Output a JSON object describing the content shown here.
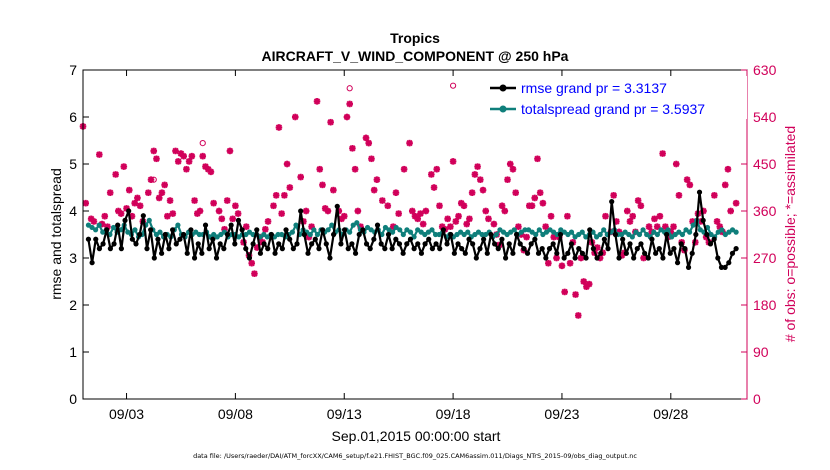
{
  "chart_data": {
    "type": "line",
    "title": "Tropics",
    "subtitle": "AIRCRAFT_V_WIND_COMPONENT @ 250 hPa",
    "xlabel": "Sep.01,2015 00:00:00 start",
    "ylabel": "rmse and totalspread",
    "y2label": "# of obs: o=possible; *=assimilated",
    "xlim": [
      0,
      30.5
    ],
    "ylim": [
      0,
      7
    ],
    "y2lim": [
      0,
      630
    ],
    "x_ticks": [
      {
        "label": "09/03",
        "day": 2
      },
      {
        "label": "09/08",
        "day": 7
      },
      {
        "label": "09/13",
        "day": 12
      },
      {
        "label": "09/18",
        "day": 17
      },
      {
        "label": "09/23",
        "day": 22
      },
      {
        "label": "09/28",
        "day": 27
      }
    ],
    "y_ticks": [
      "0",
      "1",
      "2",
      "3",
      "4",
      "5",
      "6",
      "7"
    ],
    "y2_ticks": [
      "0",
      "90",
      "180",
      "270",
      "360",
      "450",
      "540",
      "630"
    ],
    "legend_position": "top-right",
    "colors": {
      "rmse": "#000000",
      "spread": "#0f7f7b",
      "obs": "#d1005a",
      "legend_text": "#0000ff"
    },
    "series": [
      {
        "name": "rmse grand pr = 3.3137",
        "axis": "left",
        "values": [
          3.4,
          2.9,
          3.4,
          3.2,
          3.3,
          3.6,
          3.2,
          3.3,
          3.7,
          3.2,
          3.8,
          4.0,
          3.4,
          3.3,
          3.5,
          3.9,
          3.2,
          3.6,
          3.0,
          3.4,
          3.1,
          3.5,
          3.2,
          3.6,
          3.3,
          3.4,
          3.5,
          3.1,
          3.6,
          3.0,
          3.3,
          3.1,
          3.7,
          3.2,
          3.4,
          3.0,
          3.3,
          3.2,
          3.5,
          3.7,
          3.3,
          3.8,
          3.6,
          3.2,
          3.0,
          3.3,
          3.6,
          3.1,
          3.3,
          3.2,
          3.5,
          3.1,
          3.3,
          3.2,
          3.6,
          3.4,
          3.2,
          3.3,
          4.0,
          3.5,
          3.1,
          3.3,
          3.4,
          3.2,
          3.6,
          3.3,
          3.0,
          3.5,
          4.1,
          3.3,
          3.6,
          3.2,
          3.3,
          3.1,
          3.5,
          3.6,
          3.3,
          3.2,
          3.4,
          3.7,
          3.3,
          3.2,
          3.5,
          3.2,
          3.4,
          3.3,
          3.1,
          3.3,
          3.4,
          3.2,
          3.3,
          3.1,
          3.3,
          3.4,
          3.2,
          3.3,
          3.2,
          3.6,
          3.3,
          3.5,
          3.1,
          3.3,
          3.2,
          3.1,
          3.4,
          3.3,
          3.0,
          3.2,
          3.4,
          3.1,
          3.5,
          3.3,
          3.2,
          3.4,
          3.0,
          3.3,
          3.1,
          3.5,
          3.3,
          3.2,
          3.1,
          3.3,
          3.4,
          3.1,
          3.2,
          3.0,
          3.2,
          3.3,
          3.1,
          3.5,
          3.0,
          3.1,
          3.3,
          3.0,
          3.2,
          3.1,
          3.0,
          3.6,
          3.2,
          3.0,
          3.1,
          3.4,
          3.2,
          4.2,
          3.5,
          3.0,
          3.4,
          3.1,
          3.3,
          3.0,
          3.2,
          3.3,
          3.1,
          3.0,
          3.4,
          3.1,
          3.2,
          3.0,
          3.5,
          3.1,
          3.2,
          2.9,
          3.3,
          3.2,
          2.8,
          3.1,
          3.5,
          4.4,
          3.8,
          3.5,
          3.3,
          3.4,
          3.0,
          2.8,
          2.8,
          2.9,
          3.1,
          3.2
        ]
      },
      {
        "name": "totalspread grand pr = 3.5937",
        "axis": "left",
        "values": [
          3.7,
          3.65,
          3.6,
          3.7,
          3.55,
          3.6,
          3.5,
          3.65,
          3.55,
          3.6,
          3.7,
          3.55,
          3.5,
          3.6,
          3.45,
          3.5,
          3.7,
          3.8,
          3.6,
          3.5,
          3.55,
          3.45,
          3.5,
          3.45,
          3.6,
          3.7,
          3.5,
          3.45,
          3.55,
          3.5,
          3.55,
          3.5,
          3.5,
          3.55,
          3.45,
          3.5,
          3.45,
          3.5,
          3.55,
          3.45,
          3.5,
          3.5,
          3.45,
          3.5,
          3.5,
          3.55,
          3.5,
          3.5,
          3.45,
          3.5,
          3.45,
          3.5,
          3.45,
          3.5,
          3.5,
          3.45,
          3.5,
          3.55,
          3.7,
          3.5,
          3.6,
          3.55,
          3.5,
          3.6,
          3.5,
          3.6,
          3.55,
          3.6,
          3.7,
          3.55,
          3.6,
          3.5,
          3.6,
          3.55,
          3.7,
          3.75,
          3.6,
          3.55,
          3.65,
          3.6,
          3.55,
          3.6,
          3.5,
          3.65,
          3.6,
          3.55,
          3.65,
          3.6,
          3.5,
          3.6,
          3.55,
          3.45,
          3.6,
          3.55,
          3.5,
          3.55,
          3.6,
          3.5,
          3.5,
          3.55,
          3.45,
          3.5,
          3.45,
          3.5,
          3.55,
          3.5,
          3.55,
          3.45,
          3.5,
          3.55,
          3.5,
          3.5,
          3.55,
          3.45,
          3.5,
          3.6,
          3.55,
          3.5,
          3.55,
          3.6,
          3.5,
          3.55,
          3.6,
          3.6,
          3.55,
          3.5,
          3.6,
          3.5,
          3.55,
          3.6,
          3.55,
          3.5,
          3.6,
          3.55,
          3.5,
          3.55,
          3.45,
          3.5,
          3.55,
          3.45,
          3.5,
          3.55,
          3.45,
          3.5,
          3.6,
          3.5,
          3.55,
          3.6,
          3.5,
          3.5,
          3.55,
          3.5,
          3.45,
          3.55,
          3.5,
          3.6,
          3.5,
          3.45,
          3.55,
          3.5,
          3.6,
          3.55,
          3.6,
          3.45,
          3.5,
          3.55,
          3.5,
          3.6,
          3.55,
          3.7,
          3.8,
          3.6,
          3.55,
          3.65,
          3.5,
          3.45,
          3.55,
          3.6,
          3.5,
          3.55,
          3.6,
          3.55
        ]
      }
    ],
    "obs_assimilated": {
      "axis": "right",
      "points": [
        [
          0.0,
          522
        ],
        [
          0.125,
          375
        ],
        [
          0.375,
          345
        ],
        [
          0.5,
          340
        ],
        [
          0.75,
          468
        ],
        [
          0.875,
          335
        ],
        [
          1.0,
          350
        ],
        [
          1.125,
          330
        ],
        [
          1.25,
          395
        ],
        [
          1.5,
          430
        ],
        [
          1.625,
          360
        ],
        [
          1.75,
          355
        ],
        [
          1.875,
          445
        ],
        [
          2.0,
          365
        ],
        [
          2.125,
          400
        ],
        [
          2.25,
          350
        ],
        [
          2.375,
          375
        ],
        [
          2.5,
          385
        ],
        [
          2.625,
          370
        ],
        [
          2.75,
          340
        ],
        [
          3.0,
          395
        ],
        [
          3.125,
          420
        ],
        [
          3.25,
          475
        ],
        [
          3.375,
          460
        ],
        [
          3.5,
          385
        ],
        [
          3.625,
          395
        ],
        [
          3.75,
          410
        ],
        [
          3.875,
          350
        ],
        [
          4.0,
          380
        ],
        [
          4.125,
          355
        ],
        [
          4.25,
          475
        ],
        [
          4.375,
          455
        ],
        [
          4.5,
          470
        ],
        [
          4.625,
          465
        ],
        [
          4.75,
          440
        ],
        [
          4.875,
          455
        ],
        [
          5.0,
          465
        ],
        [
          5.125,
          380
        ],
        [
          5.25,
          355
        ],
        [
          5.375,
          360
        ],
        [
          5.5,
          465
        ],
        [
          5.625,
          445
        ],
        [
          5.75,
          440
        ],
        [
          5.875,
          435
        ],
        [
          6.0,
          375
        ],
        [
          6.25,
          360
        ],
        [
          6.375,
          345
        ],
        [
          6.5,
          325
        ],
        [
          6.625,
          380
        ],
        [
          6.75,
          475
        ],
        [
          6.875,
          345
        ],
        [
          7.0,
          370
        ],
        [
          7.125,
          355
        ],
        [
          7.375,
          300
        ],
        [
          7.5,
          330
        ],
        [
          7.625,
          275
        ],
        [
          7.75,
          260
        ],
        [
          7.875,
          240
        ],
        [
          8.0,
          290
        ],
        [
          8.125,
          310
        ],
        [
          8.25,
          300
        ],
        [
          8.375,
          325
        ],
        [
          8.5,
          340
        ],
        [
          8.75,
          370
        ],
        [
          8.875,
          390
        ],
        [
          9.0,
          520
        ],
        [
          9.125,
          355
        ],
        [
          9.25,
          390
        ],
        [
          9.375,
          450
        ],
        [
          9.5,
          405
        ],
        [
          9.75,
          540
        ],
        [
          10.0,
          425
        ],
        [
          10.125,
          340
        ],
        [
          10.25,
          360
        ],
        [
          10.375,
          310
        ],
        [
          10.5,
          330
        ],
        [
          10.75,
          570
        ],
        [
          10.875,
          440
        ],
        [
          11.0,
          410
        ],
        [
          11.125,
          365
        ],
        [
          11.25,
          360
        ],
        [
          11.375,
          530
        ],
        [
          11.5,
          400
        ],
        [
          11.75,
          360
        ],
        [
          11.875,
          345
        ],
        [
          12.0,
          350
        ],
        [
          12.125,
          540
        ],
        [
          12.25,
          565
        ],
        [
          12.375,
          480
        ],
        [
          12.5,
          440
        ],
        [
          12.625,
          360
        ],
        [
          12.75,
          330
        ],
        [
          13.0,
          500
        ],
        [
          13.125,
          490
        ],
        [
          13.25,
          460
        ],
        [
          13.375,
          400
        ],
        [
          13.5,
          420
        ],
        [
          13.75,
          380
        ],
        [
          14.0,
          370
        ],
        [
          14.25,
          330
        ],
        [
          14.375,
          395
        ],
        [
          14.5,
          355
        ],
        [
          14.75,
          440
        ],
        [
          15.0,
          490
        ],
        [
          15.125,
          360
        ],
        [
          15.25,
          350
        ],
        [
          15.375,
          345
        ],
        [
          15.5,
          355
        ],
        [
          15.625,
          335
        ],
        [
          15.75,
          360
        ],
        [
          16.0,
          430
        ],
        [
          16.125,
          405
        ],
        [
          16.25,
          440
        ],
        [
          16.375,
          370
        ],
        [
          16.5,
          330
        ],
        [
          16.625,
          325
        ],
        [
          16.75,
          345
        ],
        [
          16.875,
          330
        ],
        [
          17.0,
          455
        ],
        [
          17.125,
          340
        ],
        [
          17.25,
          350
        ],
        [
          17.375,
          375
        ],
        [
          17.5,
          370
        ],
        [
          17.625,
          335
        ],
        [
          17.75,
          345
        ],
        [
          17.875,
          395
        ],
        [
          18.0,
          430
        ],
        [
          18.125,
          445
        ],
        [
          18.25,
          420
        ],
        [
          18.375,
          400
        ],
        [
          18.5,
          360
        ],
        [
          18.625,
          345
        ],
        [
          18.875,
          335
        ],
        [
          19.0,
          315
        ],
        [
          19.125,
          295
        ],
        [
          19.25,
          370
        ],
        [
          19.375,
          360
        ],
        [
          19.5,
          420
        ],
        [
          19.625,
          450
        ],
        [
          19.75,
          440
        ],
        [
          19.875,
          395
        ],
        [
          20.0,
          330
        ],
        [
          20.125,
          315
        ],
        [
          20.25,
          285
        ],
        [
          20.375,
          310
        ],
        [
          20.5,
          370
        ],
        [
          20.625,
          370
        ],
        [
          20.75,
          385
        ],
        [
          20.875,
          460
        ],
        [
          21.0,
          395
        ],
        [
          21.125,
          375
        ],
        [
          21.25,
          330
        ],
        [
          21.375,
          260
        ],
        [
          21.5,
          350
        ],
        [
          21.625,
          310
        ],
        [
          21.75,
          270
        ],
        [
          21.875,
          310
        ],
        [
          22.0,
          255
        ],
        [
          22.125,
          205
        ],
        [
          22.25,
          350
        ],
        [
          22.375,
          260
        ],
        [
          22.5,
          300
        ],
        [
          22.625,
          200
        ],
        [
          22.75,
          160
        ],
        [
          22.875,
          270
        ],
        [
          23.0,
          225
        ],
        [
          23.125,
          215
        ],
        [
          23.25,
          220
        ],
        [
          23.375,
          300
        ],
        [
          23.5,
          280
        ],
        [
          23.625,
          290
        ],
        [
          23.75,
          270
        ],
        [
          23.875,
          280
        ],
        [
          24.0,
          350
        ],
        [
          24.25,
          320
        ],
        [
          24.375,
          390
        ],
        [
          24.5,
          340
        ],
        [
          24.625,
          320
        ],
        [
          24.75,
          275
        ],
        [
          24.875,
          280
        ],
        [
          25.0,
          360
        ],
        [
          25.125,
          340
        ],
        [
          25.25,
          350
        ],
        [
          25.375,
          320
        ],
        [
          25.5,
          380
        ],
        [
          25.625,
          370
        ],
        [
          25.75,
          270
        ],
        [
          26.0,
          330
        ],
        [
          26.125,
          320
        ],
        [
          26.25,
          345
        ],
        [
          26.375,
          330
        ],
        [
          26.5,
          350
        ],
        [
          26.625,
          470
        ],
        [
          26.75,
          330
        ],
        [
          26.875,
          310
        ],
        [
          27.0,
          320
        ],
        [
          27.125,
          330
        ],
        [
          27.25,
          450
        ],
        [
          27.375,
          390
        ],
        [
          27.5,
          300
        ],
        [
          27.625,
          285
        ],
        [
          27.75,
          420
        ],
        [
          27.875,
          410
        ],
        [
          28.0,
          340
        ],
        [
          28.125,
          300
        ],
        [
          28.25,
          355
        ],
        [
          28.375,
          340
        ],
        [
          28.5,
          360
        ],
        [
          28.625,
          310
        ],
        [
          28.75,
          300
        ],
        [
          29.0,
          390
        ],
        [
          29.125,
          340
        ],
        [
          29.25,
          330
        ],
        [
          29.375,
          320
        ],
        [
          29.5,
          410
        ],
        [
          29.625,
          440
        ],
        [
          29.75,
          360
        ],
        [
          30.0,
          375
        ]
      ]
    },
    "obs_possible": {
      "axis": "right",
      "points": [
        [
          3.25,
          420
        ],
        [
          5.5,
          490
        ],
        [
          12.25,
          595
        ],
        [
          17.0,
          600
        ]
      ]
    }
  }
}
